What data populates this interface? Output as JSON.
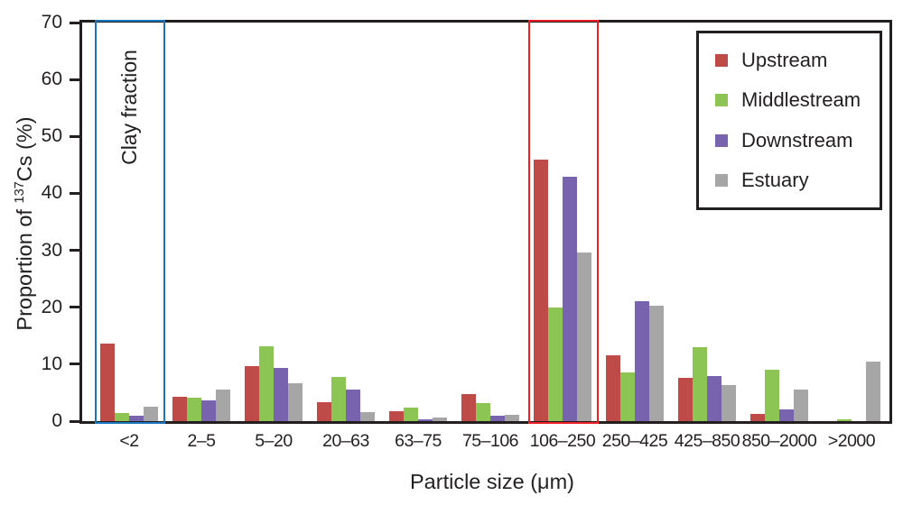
{
  "figure": {
    "ylabel_prefix": "Proportion of ",
    "ylabel_sup": "137",
    "ylabel_suffix": "Cs (%)",
    "xlabel": "Particle size (μm)",
    "clay_label": "Clay fraction"
  },
  "colors": {
    "axis": "#231F20",
    "text": "#231F20",
    "background": "#FFFFFF",
    "clay_box": "#1B75BC",
    "highlight_box": "#EC2024"
  },
  "chart_data": {
    "type": "bar",
    "title": "",
    "xlabel": "Particle size (μm)",
    "ylabel": "Proportion of ¹³⁷Cs (%)",
    "ylim": [
      0,
      70
    ],
    "yticks": [
      0,
      10,
      20,
      30,
      40,
      50,
      60,
      70
    ],
    "grid": false,
    "legend_position": "top-right-inside",
    "categories": [
      "<2",
      "2–5",
      "5–20",
      "20–63",
      "63–75",
      "75–106",
      "106–250",
      "250–425",
      "425–850",
      "850–2000",
      ">2000"
    ],
    "series": [
      {
        "name": "Upstream",
        "color": "#BE4B48",
        "values": [
          13.7,
          4.3,
          9.6,
          3.4,
          1.7,
          4.8,
          46.0,
          11.5,
          7.6,
          1.3,
          0
        ]
      },
      {
        "name": "Middlestream",
        "color": "#8DC554",
        "values": [
          1.4,
          4.2,
          13.2,
          7.8,
          2.4,
          3.2,
          20.0,
          8.6,
          13.0,
          9.0,
          0.4
        ]
      },
      {
        "name": "Downstream",
        "color": "#7763AE",
        "values": [
          1.0,
          3.7,
          9.3,
          5.6,
          0.4,
          1.0,
          43.0,
          21.0,
          7.9,
          2.0,
          0
        ]
      },
      {
        "name": "Estuary",
        "color": "#A6A6A6",
        "values": [
          2.5,
          5.5,
          6.7,
          1.6,
          0.7,
          1.1,
          29.7,
          20.3,
          6.4,
          5.6,
          10.4
        ]
      }
    ],
    "annotations": [
      {
        "type": "box",
        "label": "Clay fraction",
        "category": "<2",
        "color": "#1B75BC"
      },
      {
        "type": "box",
        "label": "",
        "category": "106–250",
        "color": "#EC2024"
      }
    ]
  }
}
